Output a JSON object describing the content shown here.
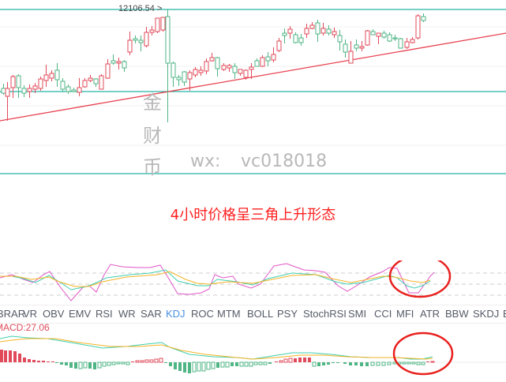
{
  "main_chart": {
    "high_price_label": "12106.54",
    "high_price_arrow": ">",
    "colors": {
      "up": "#e04a5a",
      "down": "#4fb584",
      "resistance": "#26b5a6",
      "trendline": "#e8404f",
      "grid": "#f0f0f0"
    }
  },
  "watermark": {
    "char1": "金",
    "char2": "财",
    "char3": "币",
    "wx_label": "wx:",
    "wx_id": "vc018018"
  },
  "caption": "4小时价格呈三角上升形态",
  "indicator_tabs": {
    "active": "KDJ",
    "items": [
      "BRAR",
      "VR",
      "OBV",
      "EMV",
      "RSI",
      "WR",
      "SAR",
      "KDJ",
      "ROC",
      "MTM",
      "BOLL",
      "PSY",
      "StochRSI",
      "SMI",
      "CCI",
      "MFI",
      "ATR",
      "BBW",
      "SKDJ",
      "B"
    ]
  },
  "macd": {
    "label": "MACD:27.06"
  },
  "chart_data": [
    {
      "type": "candlestick",
      "title": "4H price chart",
      "annotations": [
        "12106.54 (period high)",
        "horizontal resistance at ~12106",
        "horizontal support band",
        "ascending red trendline"
      ],
      "highlight_price": 12106.54,
      "pattern": "ascending triangle",
      "grid": true
    },
    {
      "type": "line",
      "title": "KDJ",
      "series": [
        {
          "name": "K",
          "color": "#3fcfb0"
        },
        {
          "name": "D",
          "color": "#f5b324"
        },
        {
          "name": "J",
          "color": "#e055c8"
        }
      ],
      "annotations": [
        "red circle around latest KDJ golden cross"
      ]
    },
    {
      "type": "bar",
      "title": "MACD",
      "values_label": "MACD:27.06",
      "series": [
        {
          "name": "DIF",
          "color": "#3fcfb0"
        },
        {
          "name": "DEA",
          "color": "#f5b324"
        },
        {
          "name": "Histogram",
          "colors": {
            "positive": "#e04a5a",
            "negative": "#4fb584"
          }
        }
      ],
      "annotations": [
        "red circle around latest MACD histogram turning positive"
      ]
    }
  ]
}
